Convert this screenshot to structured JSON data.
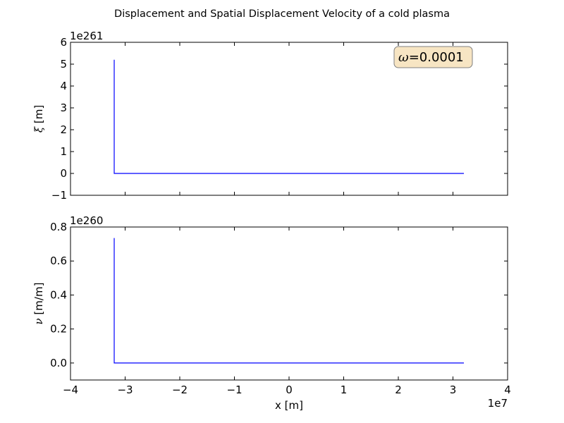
{
  "figure": {
    "title": "Displacement and Spatial Displacement Velocity of a cold plasma"
  },
  "chart_data": [
    {
      "type": "line",
      "ylabel_symbol": "ξ",
      "ylabel_unit": " [m]",
      "offset_text": "1e261",
      "yticks": [
        -1,
        0,
        1,
        2,
        3,
        4,
        5,
        6
      ],
      "ytick_labels": [
        "−1",
        "0",
        "1",
        "2",
        "3",
        "4",
        "5",
        "6"
      ],
      "ylim": [
        -1,
        6
      ],
      "annotation": {
        "symbol": "ω",
        "text": "=0.0001"
      },
      "series": [
        {
          "color": "#0000ff",
          "x": [
            -3.2,
            -3.2,
            -3.2,
            3.2
          ],
          "y": [
            5.2,
            0.0,
            0.0,
            0.0
          ]
        }
      ]
    },
    {
      "type": "line",
      "ylabel_symbol": "ν",
      "ylabel_unit": " [m/m]",
      "offset_text": "1e260",
      "yticks": [
        0.0,
        0.2,
        0.4,
        0.6,
        0.8
      ],
      "ytick_labels": [
        "0.0",
        "0.2",
        "0.4",
        "0.6",
        "0.8"
      ],
      "ylim": [
        -0.1,
        0.8
      ],
      "xlabel": "x [m]",
      "xticks": [
        -4,
        -3,
        -2,
        -1,
        0,
        1,
        2,
        3,
        4
      ],
      "xtick_labels": [
        "−4",
        "−3",
        "−2",
        "−1",
        "0",
        "1",
        "2",
        "3",
        "4"
      ],
      "xlim": [
        -4,
        4
      ],
      "x_offset_text": "1e7",
      "series": [
        {
          "color": "#0000ff",
          "x": [
            -3.2,
            -3.2,
            -3.2,
            3.2
          ],
          "y": [
            0.735,
            0.0,
            0.0,
            0.0
          ]
        }
      ]
    }
  ]
}
